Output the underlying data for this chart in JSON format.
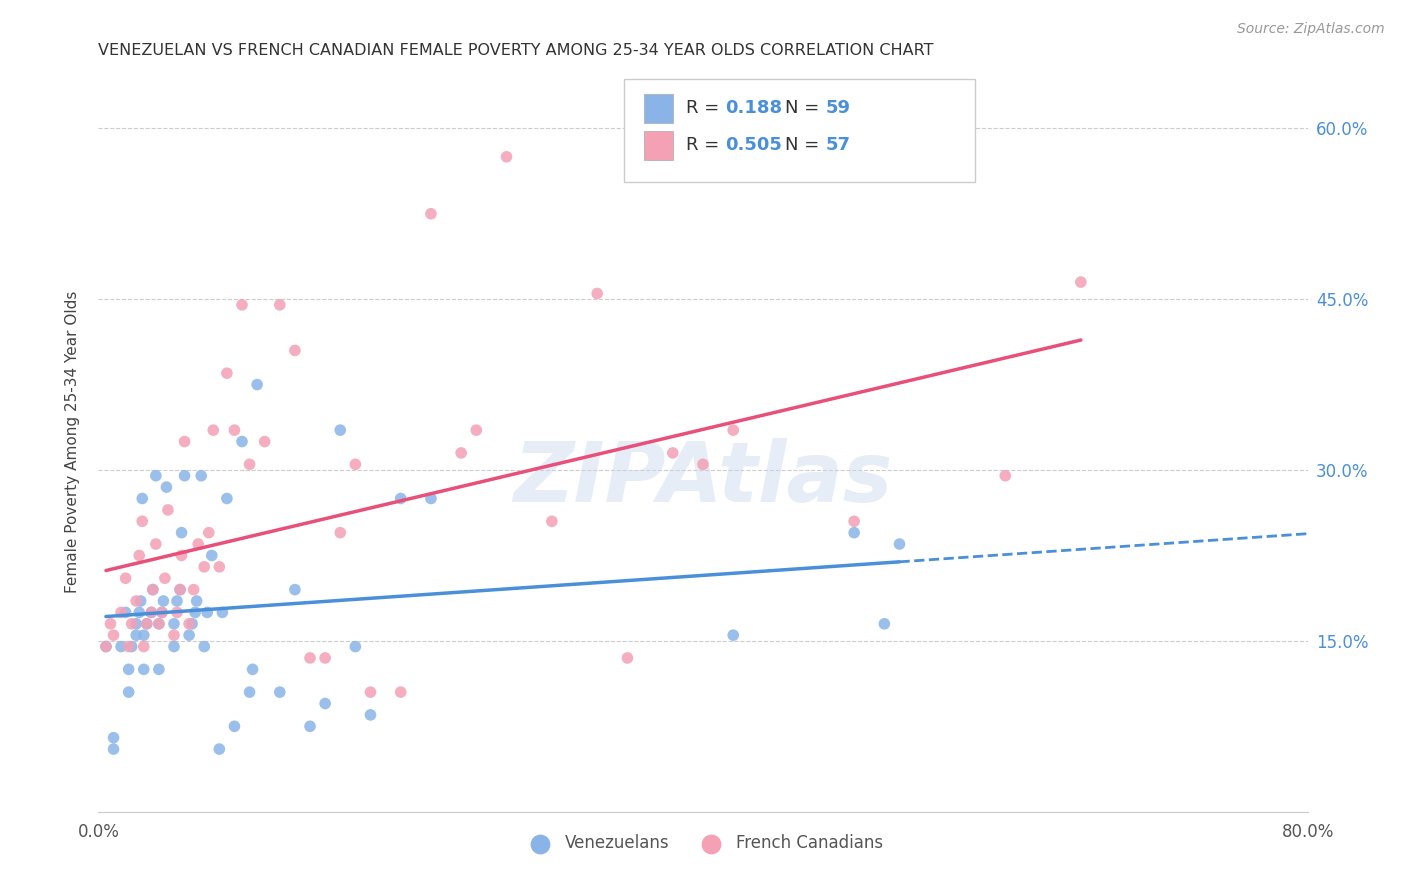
{
  "title": "VENEZUELAN VS FRENCH CANADIAN FEMALE POVERTY AMONG 25-34 YEAR OLDS CORRELATION CHART",
  "source": "Source: ZipAtlas.com",
  "ylabel": "Female Poverty Among 25-34 Year Olds",
  "xlim": [
    0.0,
    0.8
  ],
  "ylim": [
    0.0,
    0.65
  ],
  "x_ticks": [
    0.0,
    0.1,
    0.2,
    0.3,
    0.4,
    0.5,
    0.6,
    0.7,
    0.8
  ],
  "x_tick_labels": [
    "0.0%",
    "",
    "",
    "",
    "",
    "",
    "",
    "",
    "80.0%"
  ],
  "y_ticks": [
    0.0,
    0.15,
    0.3,
    0.45,
    0.6
  ],
  "y_tick_labels_right": [
    "",
    "15.0%",
    "30.0%",
    "45.0%",
    "60.0%"
  ],
  "watermark": "ZIPAtlas",
  "venezuelan_color": "#8ab4e8",
  "french_canadian_color": "#f4a0b5",
  "venezuelan_line_color": "#4a90d9",
  "french_canadian_line_color": "#e8507a",
  "venezuelan_R": 0.188,
  "venezuelan_N": 59,
  "french_canadian_R": 0.505,
  "french_canadian_N": 57,
  "venezuelan_x": [
    0.005,
    0.01,
    0.01,
    0.015,
    0.018,
    0.02,
    0.02,
    0.022,
    0.025,
    0.025,
    0.027,
    0.028,
    0.029,
    0.03,
    0.03,
    0.032,
    0.035,
    0.036,
    0.038,
    0.04,
    0.04,
    0.042,
    0.043,
    0.045,
    0.05,
    0.05,
    0.052,
    0.054,
    0.055,
    0.057,
    0.06,
    0.062,
    0.064,
    0.065,
    0.068,
    0.07,
    0.072,
    0.075,
    0.08,
    0.082,
    0.085,
    0.09,
    0.095,
    0.1,
    0.102,
    0.105,
    0.12,
    0.13,
    0.14,
    0.15,
    0.16,
    0.17,
    0.18,
    0.2,
    0.22,
    0.42,
    0.5,
    0.52,
    0.53
  ],
  "venezuelan_y": [
    0.145,
    0.055,
    0.065,
    0.145,
    0.175,
    0.105,
    0.125,
    0.145,
    0.155,
    0.165,
    0.175,
    0.185,
    0.275,
    0.125,
    0.155,
    0.165,
    0.175,
    0.195,
    0.295,
    0.125,
    0.165,
    0.175,
    0.185,
    0.285,
    0.145,
    0.165,
    0.185,
    0.195,
    0.245,
    0.295,
    0.155,
    0.165,
    0.175,
    0.185,
    0.295,
    0.145,
    0.175,
    0.225,
    0.055,
    0.175,
    0.275,
    0.075,
    0.325,
    0.105,
    0.125,
    0.375,
    0.105,
    0.195,
    0.075,
    0.095,
    0.335,
    0.145,
    0.085,
    0.275,
    0.275,
    0.155,
    0.245,
    0.165,
    0.235
  ],
  "french_canadian_x": [
    0.005,
    0.008,
    0.01,
    0.015,
    0.018,
    0.02,
    0.022,
    0.025,
    0.027,
    0.029,
    0.03,
    0.032,
    0.035,
    0.036,
    0.038,
    0.04,
    0.042,
    0.044,
    0.046,
    0.05,
    0.052,
    0.054,
    0.055,
    0.057,
    0.06,
    0.063,
    0.066,
    0.07,
    0.073,
    0.076,
    0.08,
    0.085,
    0.09,
    0.095,
    0.1,
    0.11,
    0.12,
    0.13,
    0.14,
    0.15,
    0.16,
    0.17,
    0.18,
    0.2,
    0.22,
    0.24,
    0.25,
    0.27,
    0.3,
    0.33,
    0.35,
    0.38,
    0.4,
    0.42,
    0.5,
    0.6,
    0.65
  ],
  "french_canadian_y": [
    0.145,
    0.165,
    0.155,
    0.175,
    0.205,
    0.145,
    0.165,
    0.185,
    0.225,
    0.255,
    0.145,
    0.165,
    0.175,
    0.195,
    0.235,
    0.165,
    0.175,
    0.205,
    0.265,
    0.155,
    0.175,
    0.195,
    0.225,
    0.325,
    0.165,
    0.195,
    0.235,
    0.215,
    0.245,
    0.335,
    0.215,
    0.385,
    0.335,
    0.445,
    0.305,
    0.325,
    0.445,
    0.405,
    0.135,
    0.135,
    0.245,
    0.305,
    0.105,
    0.105,
    0.525,
    0.315,
    0.335,
    0.575,
    0.255,
    0.455,
    0.135,
    0.315,
    0.305,
    0.335,
    0.255,
    0.295,
    0.465
  ]
}
